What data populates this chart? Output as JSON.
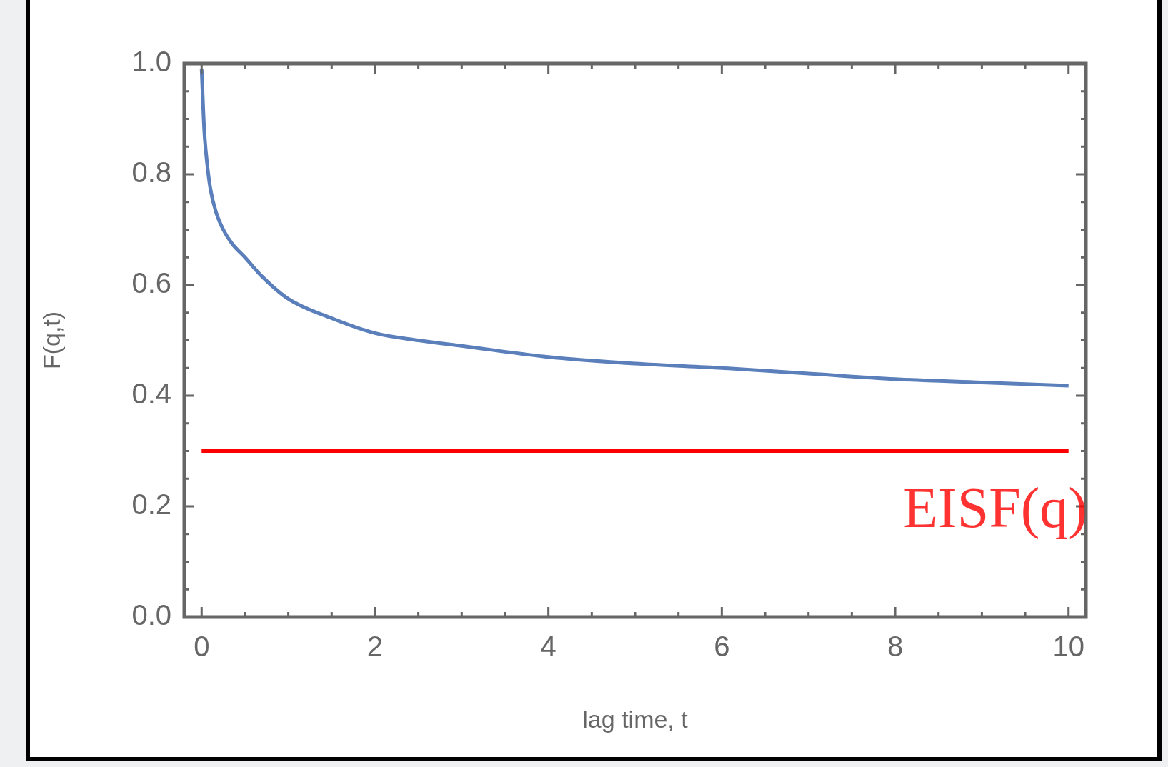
{
  "chart_data": {
    "type": "line",
    "xlabel": "lag time, t",
    "ylabel": "F(q,t)",
    "xlim": [
      -0.2,
      10.2
    ],
    "ylim": [
      0,
      1
    ],
    "xticks": [
      0,
      2,
      4,
      6,
      8,
      10
    ],
    "yticks": [
      {
        "value": 0,
        "label": "0.0"
      },
      0.2,
      0.4,
      0.6,
      0.8,
      {
        "value": 1,
        "label": "1.0"
      }
    ],
    "series": [
      {
        "color": "#5b7fba",
        "x": [
          0,
          0.03,
          0.05,
          0.1,
          0.17,
          0.25,
          0.35,
          0.5,
          0.7,
          1,
          1.5,
          2,
          2.5,
          3,
          4,
          5,
          6,
          7,
          8,
          9,
          10
        ],
        "values": [
          0.99,
          0.88,
          0.84,
          0.775,
          0.73,
          0.7,
          0.675,
          0.65,
          0.615,
          0.575,
          0.54,
          0.513,
          0.5,
          0.49,
          0.47,
          0.458,
          0.45,
          0.44,
          0.43,
          0.424,
          0.418
        ]
      },
      {
        "color": "#ff0000",
        "x": [
          0,
          10
        ],
        "values": [
          0.3,
          0.3
        ]
      }
    ],
    "annotations": [
      "EISF(q)"
    ],
    "grid": false,
    "legend": false,
    "marker": "none",
    "line_style": "solid"
  }
}
